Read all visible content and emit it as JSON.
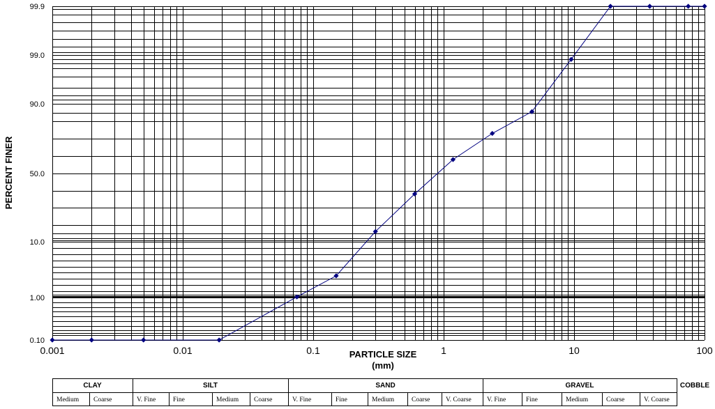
{
  "chart_data": {
    "type": "line",
    "xlabel": "PARTICLE SIZE",
    "xlabel_unit": "(mm)",
    "ylabel": "PERCENT FINER",
    "x_scale": "log",
    "xlim": [
      0.001,
      100
    ],
    "x_ticks": [
      {
        "value": 0.001,
        "label": "0.001"
      },
      {
        "value": 0.01,
        "label": "0.01"
      },
      {
        "value": 0.1,
        "label": "0.1"
      },
      {
        "value": 1,
        "label": "1"
      },
      {
        "value": 10,
        "label": "10"
      },
      {
        "value": 100,
        "label": "100"
      }
    ],
    "y_scale": "probability",
    "y_ticks": [
      "99.9",
      "99.0",
      "90.0",
      "50.0",
      "10.0",
      "1.00",
      "0.10"
    ],
    "grid": true,
    "series": [
      {
        "color": "#000080",
        "x": [
          0.001,
          0.002,
          0.005,
          0.019,
          0.075,
          0.15,
          0.3,
          0.6,
          1.18,
          2.36,
          4.75,
          9.5,
          19,
          38,
          75,
          100
        ],
        "y": [
          0.1,
          0.1,
          0.1,
          0.1,
          1.1,
          4.5,
          16,
          38,
          58,
          73,
          85.5,
          98.2,
          99.9,
          99.9,
          99.9,
          99.9
        ]
      }
    ]
  },
  "classification": {
    "groups": [
      "CLAY",
      "SILT",
      "SAND",
      "GRAVEL",
      "COBBLE"
    ],
    "subdivisions": [
      "Medium",
      "Coarse",
      "V. Fine",
      "Fine",
      "Medium",
      "Coarse",
      "V. Fine",
      "Fine",
      "Medium",
      "Coarse",
      "V. Coarse",
      "V. Fine",
      "Fine",
      "Medium",
      "Coarse",
      "V. Coarse"
    ]
  }
}
